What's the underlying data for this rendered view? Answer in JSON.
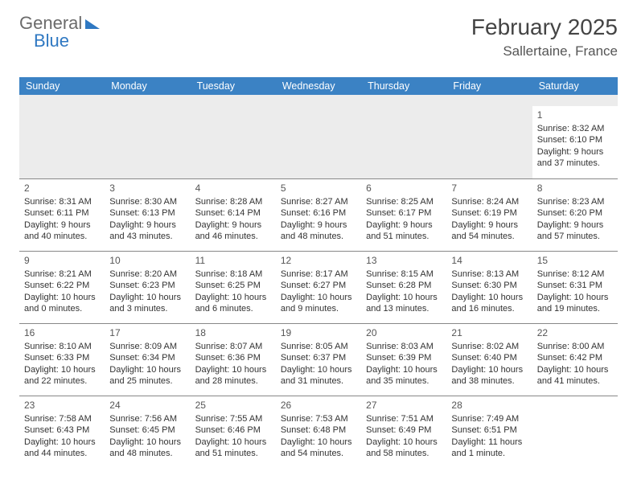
{
  "logo": {
    "word1": "General",
    "word2": "Blue"
  },
  "title": "February 2025",
  "subtitle": "Sallertaine, France",
  "dayNames": [
    "Sunday",
    "Monday",
    "Tuesday",
    "Wednesday",
    "Thursday",
    "Friday",
    "Saturday"
  ],
  "colors": {
    "header_bar": "#3b82c4",
    "text": "#333333",
    "rule": "#888888",
    "blank": "#ececec",
    "logo_gray": "#6b6b6b",
    "logo_blue": "#2f78c2"
  },
  "weeks": [
    [
      null,
      null,
      null,
      null,
      null,
      null,
      {
        "d": "1",
        "r": "Sunrise: 8:32 AM",
        "s": "Sunset: 6:10 PM",
        "l1": "Daylight: 9 hours",
        "l2": "and 37 minutes."
      }
    ],
    [
      {
        "d": "2",
        "r": "Sunrise: 8:31 AM",
        "s": "Sunset: 6:11 PM",
        "l1": "Daylight: 9 hours",
        "l2": "and 40 minutes."
      },
      {
        "d": "3",
        "r": "Sunrise: 8:30 AM",
        "s": "Sunset: 6:13 PM",
        "l1": "Daylight: 9 hours",
        "l2": "and 43 minutes."
      },
      {
        "d": "4",
        "r": "Sunrise: 8:28 AM",
        "s": "Sunset: 6:14 PM",
        "l1": "Daylight: 9 hours",
        "l2": "and 46 minutes."
      },
      {
        "d": "5",
        "r": "Sunrise: 8:27 AM",
        "s": "Sunset: 6:16 PM",
        "l1": "Daylight: 9 hours",
        "l2": "and 48 minutes."
      },
      {
        "d": "6",
        "r": "Sunrise: 8:25 AM",
        "s": "Sunset: 6:17 PM",
        "l1": "Daylight: 9 hours",
        "l2": "and 51 minutes."
      },
      {
        "d": "7",
        "r": "Sunrise: 8:24 AM",
        "s": "Sunset: 6:19 PM",
        "l1": "Daylight: 9 hours",
        "l2": "and 54 minutes."
      },
      {
        "d": "8",
        "r": "Sunrise: 8:23 AM",
        "s": "Sunset: 6:20 PM",
        "l1": "Daylight: 9 hours",
        "l2": "and 57 minutes."
      }
    ],
    [
      {
        "d": "9",
        "r": "Sunrise: 8:21 AM",
        "s": "Sunset: 6:22 PM",
        "l1": "Daylight: 10 hours",
        "l2": "and 0 minutes."
      },
      {
        "d": "10",
        "r": "Sunrise: 8:20 AM",
        "s": "Sunset: 6:23 PM",
        "l1": "Daylight: 10 hours",
        "l2": "and 3 minutes."
      },
      {
        "d": "11",
        "r": "Sunrise: 8:18 AM",
        "s": "Sunset: 6:25 PM",
        "l1": "Daylight: 10 hours",
        "l2": "and 6 minutes."
      },
      {
        "d": "12",
        "r": "Sunrise: 8:17 AM",
        "s": "Sunset: 6:27 PM",
        "l1": "Daylight: 10 hours",
        "l2": "and 9 minutes."
      },
      {
        "d": "13",
        "r": "Sunrise: 8:15 AM",
        "s": "Sunset: 6:28 PM",
        "l1": "Daylight: 10 hours",
        "l2": "and 13 minutes."
      },
      {
        "d": "14",
        "r": "Sunrise: 8:13 AM",
        "s": "Sunset: 6:30 PM",
        "l1": "Daylight: 10 hours",
        "l2": "and 16 minutes."
      },
      {
        "d": "15",
        "r": "Sunrise: 8:12 AM",
        "s": "Sunset: 6:31 PM",
        "l1": "Daylight: 10 hours",
        "l2": "and 19 minutes."
      }
    ],
    [
      {
        "d": "16",
        "r": "Sunrise: 8:10 AM",
        "s": "Sunset: 6:33 PM",
        "l1": "Daylight: 10 hours",
        "l2": "and 22 minutes."
      },
      {
        "d": "17",
        "r": "Sunrise: 8:09 AM",
        "s": "Sunset: 6:34 PM",
        "l1": "Daylight: 10 hours",
        "l2": "and 25 minutes."
      },
      {
        "d": "18",
        "r": "Sunrise: 8:07 AM",
        "s": "Sunset: 6:36 PM",
        "l1": "Daylight: 10 hours",
        "l2": "and 28 minutes."
      },
      {
        "d": "19",
        "r": "Sunrise: 8:05 AM",
        "s": "Sunset: 6:37 PM",
        "l1": "Daylight: 10 hours",
        "l2": "and 31 minutes."
      },
      {
        "d": "20",
        "r": "Sunrise: 8:03 AM",
        "s": "Sunset: 6:39 PM",
        "l1": "Daylight: 10 hours",
        "l2": "and 35 minutes."
      },
      {
        "d": "21",
        "r": "Sunrise: 8:02 AM",
        "s": "Sunset: 6:40 PM",
        "l1": "Daylight: 10 hours",
        "l2": "and 38 minutes."
      },
      {
        "d": "22",
        "r": "Sunrise: 8:00 AM",
        "s": "Sunset: 6:42 PM",
        "l1": "Daylight: 10 hours",
        "l2": "and 41 minutes."
      }
    ],
    [
      {
        "d": "23",
        "r": "Sunrise: 7:58 AM",
        "s": "Sunset: 6:43 PM",
        "l1": "Daylight: 10 hours",
        "l2": "and 44 minutes."
      },
      {
        "d": "24",
        "r": "Sunrise: 7:56 AM",
        "s": "Sunset: 6:45 PM",
        "l1": "Daylight: 10 hours",
        "l2": "and 48 minutes."
      },
      {
        "d": "25",
        "r": "Sunrise: 7:55 AM",
        "s": "Sunset: 6:46 PM",
        "l1": "Daylight: 10 hours",
        "l2": "and 51 minutes."
      },
      {
        "d": "26",
        "r": "Sunrise: 7:53 AM",
        "s": "Sunset: 6:48 PM",
        "l1": "Daylight: 10 hours",
        "l2": "and 54 minutes."
      },
      {
        "d": "27",
        "r": "Sunrise: 7:51 AM",
        "s": "Sunset: 6:49 PM",
        "l1": "Daylight: 10 hours",
        "l2": "and 58 minutes."
      },
      {
        "d": "28",
        "r": "Sunrise: 7:49 AM",
        "s": "Sunset: 6:51 PM",
        "l1": "Daylight: 11 hours",
        "l2": "and 1 minute."
      },
      null
    ]
  ]
}
